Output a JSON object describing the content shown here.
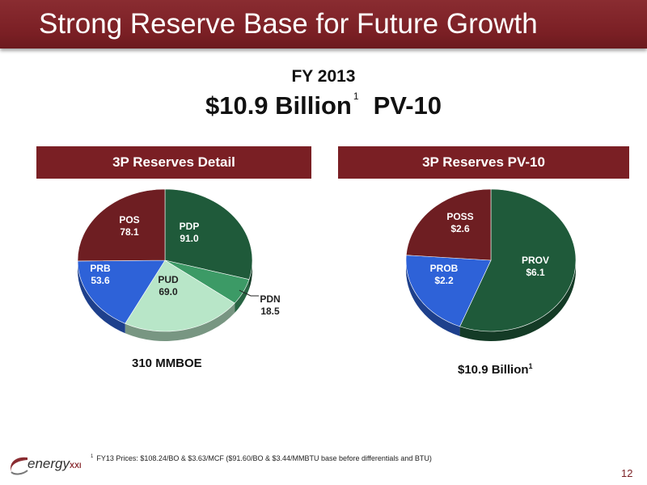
{
  "slide": {
    "title": "Strong Reserve Base for Future Growth",
    "fy": "FY 2013",
    "headline_value": "$10.9 Billion",
    "headline_footnote": "1",
    "headline_metric": "PV-10",
    "page_number": "12",
    "footnote_marker": "1",
    "footnote_text": "FY13 Prices: $108.24/BO & $3.63/MCF ($91.60/BO & $3.44/MMBTU base before differentials and BTU)",
    "logo_word": "energy",
    "logo_sub": "XXI"
  },
  "chart_data": [
    {
      "type": "pie",
      "title": "3P Reserves Detail",
      "total_label": "310 MMBOE",
      "slices": [
        {
          "name": "PDP",
          "value": 91.0,
          "label": "91.0",
          "color": "#1f5a3a"
        },
        {
          "name": "PDN",
          "value": 18.5,
          "label": "18.5",
          "color": "#3c9a66"
        },
        {
          "name": "PUD",
          "value": 69.0,
          "label": "69.0",
          "color": "#b8e6c8"
        },
        {
          "name": "PRB",
          "value": 53.6,
          "label": "53.6",
          "color": "#2e62d8"
        },
        {
          "name": "POS",
          "value": 78.1,
          "label": "78.1",
          "color": "#6e1e22"
        }
      ]
    },
    {
      "type": "pie",
      "title": "3P Reserves PV-10",
      "total_label": "$10.9 Billion",
      "total_footnote": "1",
      "slices": [
        {
          "name": "PROV",
          "value": 6.1,
          "label": "$6.1",
          "color": "#1f5a3a"
        },
        {
          "name": "PROB",
          "value": 2.2,
          "label": "$2.2",
          "color": "#2e62d8"
        },
        {
          "name": "POSS",
          "value": 2.6,
          "label": "$2.6",
          "color": "#6e1e22"
        }
      ]
    }
  ]
}
